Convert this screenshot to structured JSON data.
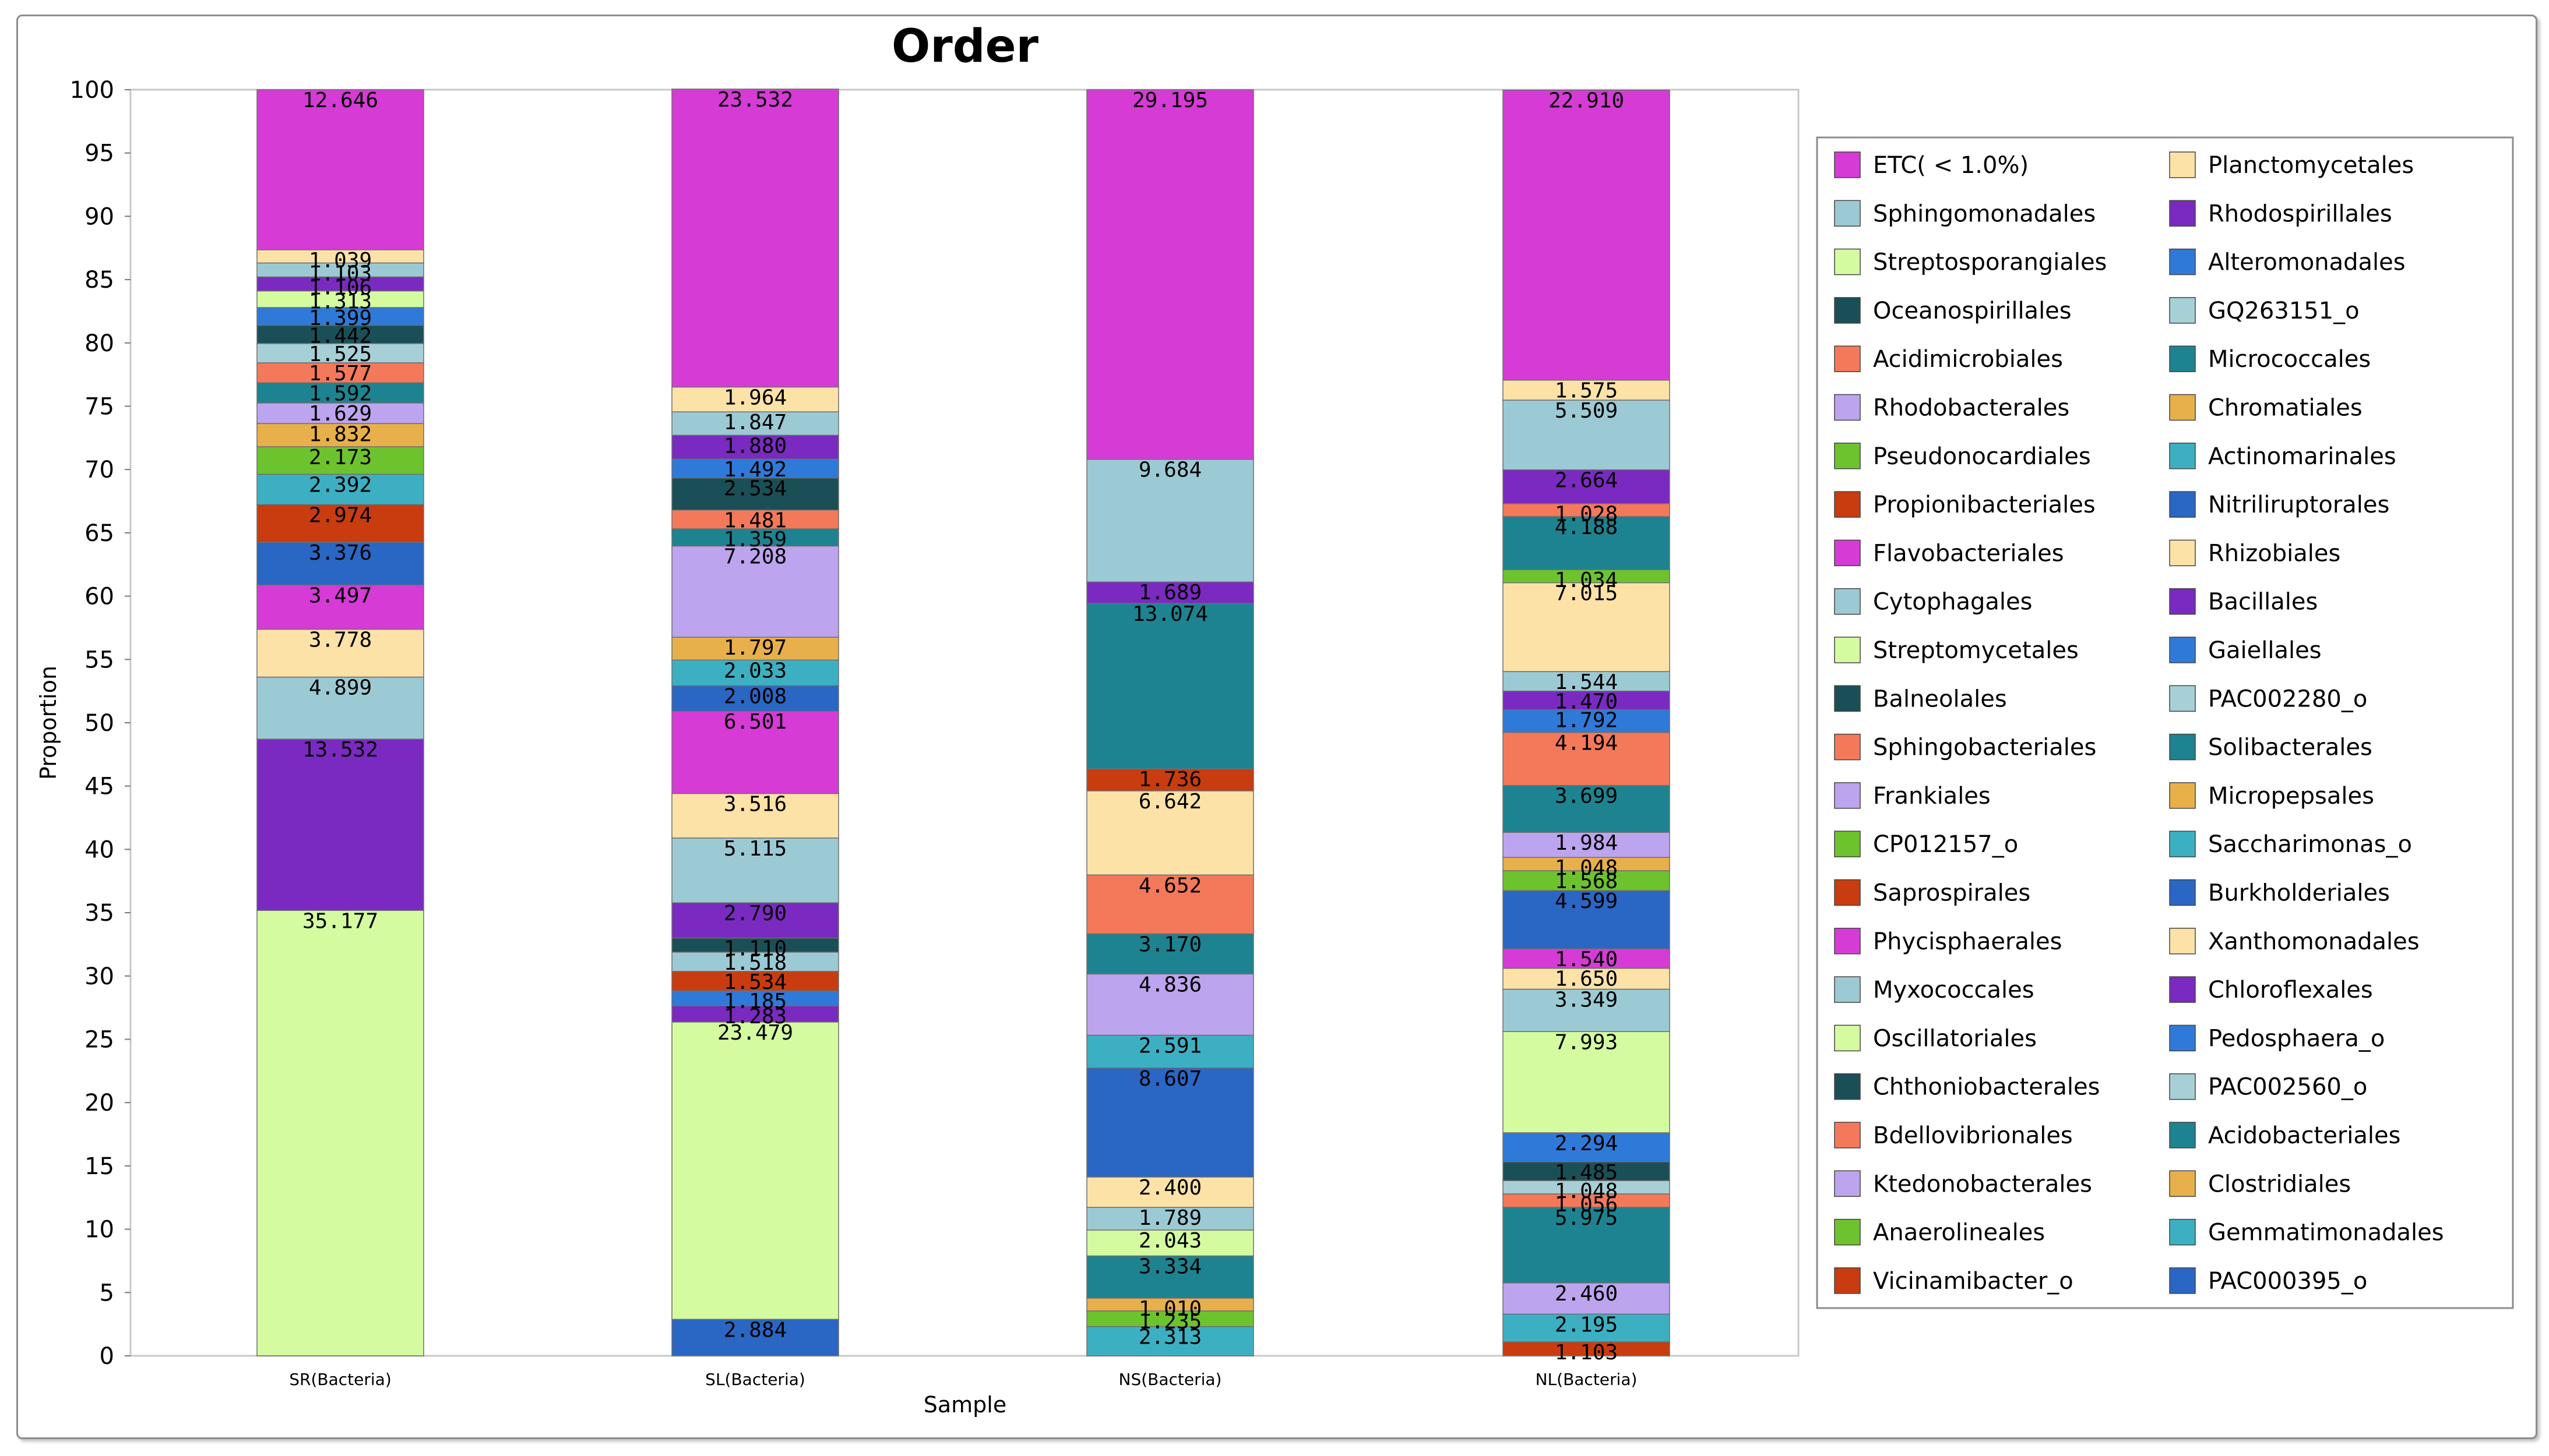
{
  "chart_data": {
    "type": "bar",
    "stacked": true,
    "title": "Order",
    "xlabel": "Sample",
    "ylabel": "Proportion",
    "ylim": [
      0,
      100
    ],
    "yticks": [
      0,
      5,
      10,
      15,
      20,
      25,
      30,
      35,
      40,
      45,
      50,
      55,
      60,
      65,
      70,
      75,
      80,
      85,
      90,
      95,
      100
    ],
    "grid": false,
    "legend_position": "right",
    "categories": [
      "SR(Bacteria)",
      "SL(Bacteria)",
      "NS(Bacteria)",
      "NL(Bacteria)"
    ],
    "legend": [
      {
        "name": "ETC( < 1.0%)",
        "color": "#d63bd6"
      },
      {
        "name": "Planctomycetales",
        "color": "#fde2a8"
      },
      {
        "name": "Sphingomonadales",
        "color": "#9ccad4"
      },
      {
        "name": "Rhodospirillales",
        "color": "#7a2ac0"
      },
      {
        "name": "Streptosporangiales",
        "color": "#d4fba0"
      },
      {
        "name": "Alteromonadales",
        "color": "#2f7ad8"
      },
      {
        "name": "Oceanospirillales",
        "color": "#1b4f57"
      },
      {
        "name": "GQ263151_o",
        "color": "#a7cfd6"
      },
      {
        "name": "Acidimicrobiales",
        "color": "#f4795a"
      },
      {
        "name": "Micrococcales",
        "color": "#1e8390"
      },
      {
        "name": "Rhodobacterales",
        "color": "#bda4ee"
      },
      {
        "name": "Chromatiales",
        "color": "#e8b04a"
      },
      {
        "name": "Pseudonocardiales",
        "color": "#6dc32e"
      },
      {
        "name": "Actinomarinales",
        "color": "#3cb0c2"
      },
      {
        "name": "Propionibacteriales",
        "color": "#c83c10"
      },
      {
        "name": "Nitriliruptorales",
        "color": "#2a66c4"
      },
      {
        "name": "Flavobacteriales",
        "color": "#d63bd6"
      },
      {
        "name": "Rhizobiales",
        "color": "#fde2a8"
      },
      {
        "name": "Cytophagales",
        "color": "#9ccad4"
      },
      {
        "name": "Bacillales",
        "color": "#7a2ac0"
      },
      {
        "name": "Streptomycetales",
        "color": "#d4fba0"
      },
      {
        "name": "Gaiellales",
        "color": "#2f7ad8"
      },
      {
        "name": "Balneolales",
        "color": "#1b4f57"
      },
      {
        "name": "PAC002280_o",
        "color": "#a7cfd6"
      },
      {
        "name": "Sphingobacteriales",
        "color": "#f4795a"
      },
      {
        "name": "Solibacterales",
        "color": "#1e8390"
      },
      {
        "name": "Frankiales",
        "color": "#bda4ee"
      },
      {
        "name": "Micropepsales",
        "color": "#e8b04a"
      },
      {
        "name": "CP012157_o",
        "color": "#6dc32e"
      },
      {
        "name": "Saccharimonas_o",
        "color": "#3cb0c2"
      },
      {
        "name": "Saprospirales",
        "color": "#c83c10"
      },
      {
        "name": "Burkholderiales",
        "color": "#2a66c4"
      },
      {
        "name": "Phycisphaerales",
        "color": "#d63bd6"
      },
      {
        "name": "Xanthomonadales",
        "color": "#fde2a8"
      },
      {
        "name": "Myxococcales",
        "color": "#9ccad4"
      },
      {
        "name": "Chloroflexales",
        "color": "#7a2ac0"
      },
      {
        "name": "Oscillatoriales",
        "color": "#d4fba0"
      },
      {
        "name": "Pedosphaera_o",
        "color": "#2f7ad8"
      },
      {
        "name": "Chthoniobacterales",
        "color": "#1b4f57"
      },
      {
        "name": "PAC002560_o",
        "color": "#a7cfd6"
      },
      {
        "name": "Bdellovibrionales",
        "color": "#f4795a"
      },
      {
        "name": "Acidobacteriales",
        "color": "#1e8390"
      },
      {
        "name": "Ktedonobacterales",
        "color": "#bda4ee"
      },
      {
        "name": "Clostridiales",
        "color": "#e8b04a"
      },
      {
        "name": "Anaerolineales",
        "color": "#6dc32e"
      },
      {
        "name": "Gemmatimonadales",
        "color": "#3cb0c2"
      },
      {
        "name": "Vicinamibacter_o",
        "color": "#c83c10"
      },
      {
        "name": "PAC000395_o",
        "color": "#2a66c4"
      }
    ],
    "series": [
      {
        "category": "SR(Bacteria)",
        "segments": [
          {
            "value": 35.177,
            "color": "#d4fba0",
            "label": "35.177"
          },
          {
            "value": 13.532,
            "color": "#7a2ac0",
            "label": "13.532"
          },
          {
            "value": 4.899,
            "color": "#9ccad4",
            "label": "4.899"
          },
          {
            "value": 3.778,
            "color": "#fde2a8",
            "label": "3.778"
          },
          {
            "value": 3.497,
            "color": "#d63bd6",
            "label": "3.497"
          },
          {
            "value": 3.376,
            "color": "#2a66c4",
            "label": "3.376"
          },
          {
            "value": 2.974,
            "color": "#c83c10",
            "label": "2.974"
          },
          {
            "value": 2.392,
            "color": "#3cb0c2",
            "label": "2.392"
          },
          {
            "value": 2.173,
            "color": "#6dc32e",
            "label": "2.173"
          },
          {
            "value": 1.832,
            "color": "#e8b04a",
            "label": "1.832"
          },
          {
            "value": 1.629,
            "color": "#bda4ee",
            "label": "1.629"
          },
          {
            "value": 1.592,
            "color": "#1e8390",
            "label": "1.592"
          },
          {
            "value": 1.577,
            "color": "#f4795a",
            "label": "1.577"
          },
          {
            "value": 1.525,
            "color": "#a7cfd6",
            "label": "1.525"
          },
          {
            "value": 1.442,
            "color": "#1b4f57",
            "label": "1.442"
          },
          {
            "value": 1.399,
            "color": "#2f7ad8",
            "label": "1.399"
          },
          {
            "value": 1.313,
            "color": "#d4fba0",
            "label": "1.313"
          },
          {
            "value": 1.106,
            "color": "#7a2ac0",
            "label": "1.106"
          },
          {
            "value": 1.103,
            "color": "#9ccad4",
            "label": "1.103"
          },
          {
            "value": 1.039,
            "color": "#fde2a8",
            "label": "1.039"
          },
          {
            "value": 12.646,
            "color": "#d63bd6",
            "label": "12.646"
          }
        ]
      },
      {
        "category": "SL(Bacteria)",
        "segments": [
          {
            "value": 2.884,
            "color": "#2a66c4",
            "label": "2.884"
          },
          {
            "value": 23.479,
            "color": "#d4fba0",
            "label": "23.479"
          },
          {
            "value": 1.283,
            "color": "#7a2ac0",
            "label": "1.283"
          },
          {
            "value": 1.185,
            "color": "#2f7ad8",
            "label": "1.185"
          },
          {
            "value": 1.534,
            "color": "#c83c10",
            "label": "1.534"
          },
          {
            "value": 1.518,
            "color": "#9ccad4",
            "label": "1.518"
          },
          {
            "value": 1.11,
            "color": "#1b4f57",
            "label": "1.110"
          },
          {
            "value": 2.79,
            "color": "#7a2ac0",
            "label": "2.790"
          },
          {
            "value": 5.115,
            "color": "#9ccad4",
            "label": "5.115"
          },
          {
            "value": 3.516,
            "color": "#fde2a8",
            "label": "3.516"
          },
          {
            "value": 6.501,
            "color": "#d63bd6",
            "label": "6.501"
          },
          {
            "value": 2.008,
            "color": "#2a66c4",
            "label": "2.008"
          },
          {
            "value": 2.033,
            "color": "#3cb0c2",
            "label": "2.033"
          },
          {
            "value": 1.797,
            "color": "#e8b04a",
            "label": "1.797"
          },
          {
            "value": 7.208,
            "color": "#bda4ee",
            "label": "7.208"
          },
          {
            "value": 1.359,
            "color": "#1e8390",
            "label": "1.359"
          },
          {
            "value": 1.481,
            "color": "#f4795a",
            "label": "1.481"
          },
          {
            "value": 2.534,
            "color": "#1b4f57",
            "label": "2.534"
          },
          {
            "value": 1.492,
            "color": "#2f7ad8",
            "label": "1.492"
          },
          {
            "value": 1.88,
            "color": "#7a2ac0",
            "label": "1.880"
          },
          {
            "value": 1.847,
            "color": "#9ccad4",
            "label": "1.847"
          },
          {
            "value": 1.964,
            "color": "#fde2a8",
            "label": "1.964"
          },
          {
            "value": 23.532,
            "color": "#d63bd6",
            "label": "23.532"
          }
        ]
      },
      {
        "category": "NS(Bacteria)",
        "segments": [
          {
            "value": 2.313,
            "color": "#3cb0c2",
            "label": "2.313"
          },
          {
            "value": 1.235,
            "color": "#6dc32e",
            "label": "1.235"
          },
          {
            "value": 1.01,
            "color": "#e8b04a",
            "label": "1.010"
          },
          {
            "value": 3.334,
            "color": "#1e8390",
            "label": "3.334"
          },
          {
            "value": 2.043,
            "color": "#d4fba0",
            "label": "2.043"
          },
          {
            "value": 1.789,
            "color": "#9ccad4",
            "label": "1.789"
          },
          {
            "value": 2.4,
            "color": "#fde2a8",
            "label": "2.400"
          },
          {
            "value": 8.607,
            "color": "#2a66c4",
            "label": "8.607"
          },
          {
            "value": 2.591,
            "color": "#3cb0c2",
            "label": "2.591"
          },
          {
            "value": 4.836,
            "color": "#bda4ee",
            "label": "4.836"
          },
          {
            "value": 3.17,
            "color": "#1e8390",
            "label": "3.170"
          },
          {
            "value": 4.652,
            "color": "#f4795a",
            "label": "4.652"
          },
          {
            "value": 6.642,
            "color": "#fde2a8",
            "label": "6.642"
          },
          {
            "value": 1.736,
            "color": "#c83c10",
            "label": "1.736"
          },
          {
            "value": 13.074,
            "color": "#1e8390",
            "label": "13.074"
          },
          {
            "value": 1.689,
            "color": "#7a2ac0",
            "label": "1.689"
          },
          {
            "value": 9.684,
            "color": "#9ccad4",
            "label": "9.684"
          },
          {
            "value": 29.195,
            "color": "#d63bd6",
            "label": "29.195"
          }
        ]
      },
      {
        "category": "NL(Bacteria)",
        "segments": [
          {
            "value": 1.103,
            "color": "#c83c10",
            "label": "1.103"
          },
          {
            "value": 2.195,
            "color": "#3cb0c2",
            "label": "2.195"
          },
          {
            "value": 2.46,
            "color": "#bda4ee",
            "label": "2.460"
          },
          {
            "value": 5.975,
            "color": "#1e8390",
            "label": "5.975"
          },
          {
            "value": 1.056,
            "color": "#f4795a",
            "label": "1.056"
          },
          {
            "value": 1.048,
            "color": "#a7cfd6",
            "label": "1.048"
          },
          {
            "value": 1.485,
            "color": "#1b4f57",
            "label": "1.485"
          },
          {
            "value": 2.294,
            "color": "#2f7ad8",
            "label": "2.294"
          },
          {
            "value": 7.993,
            "color": "#d4fba0",
            "label": "7.993"
          },
          {
            "value": 3.349,
            "color": "#9ccad4",
            "label": "3.349"
          },
          {
            "value": 1.65,
            "color": "#fde2a8",
            "label": "1.650"
          },
          {
            "value": 1.54,
            "color": "#d63bd6",
            "label": "1.540"
          },
          {
            "value": 4.599,
            "color": "#2a66c4",
            "label": "4.599"
          },
          {
            "value": 1.568,
            "color": "#6dc32e",
            "label": "1.568"
          },
          {
            "value": 1.048,
            "color": "#e8b04a",
            "label": "1.048"
          },
          {
            "value": 1.984,
            "color": "#bda4ee",
            "label": "1.984"
          },
          {
            "value": 3.699,
            "color": "#1e8390",
            "label": "3.699"
          },
          {
            "value": 4.194,
            "color": "#f4795a",
            "label": "4.194"
          },
          {
            "value": 1.792,
            "color": "#2f7ad8",
            "label": "1.792"
          },
          {
            "value": 1.47,
            "color": "#7a2ac0",
            "label": "1.470"
          },
          {
            "value": 1.544,
            "color": "#9ccad4",
            "label": "1.544"
          },
          {
            "value": 7.015,
            "color": "#fde2a8",
            "label": "7.015"
          },
          {
            "value": 1.034,
            "color": "#6dc32e",
            "label": "1.034"
          },
          {
            "value": 4.188,
            "color": "#1e8390",
            "label": "4.188"
          },
          {
            "value": 1.028,
            "color": "#f4795a",
            "label": "1.028"
          },
          {
            "value": 2.664,
            "color": "#7a2ac0",
            "label": "2.664"
          },
          {
            "value": 5.509,
            "color": "#9ccad4",
            "label": "5.509"
          },
          {
            "value": 1.575,
            "color": "#fde2a8",
            "label": "1.575"
          },
          {
            "value": 22.91,
            "color": "#d63bd6",
            "label": "22.910"
          }
        ]
      }
    ]
  }
}
